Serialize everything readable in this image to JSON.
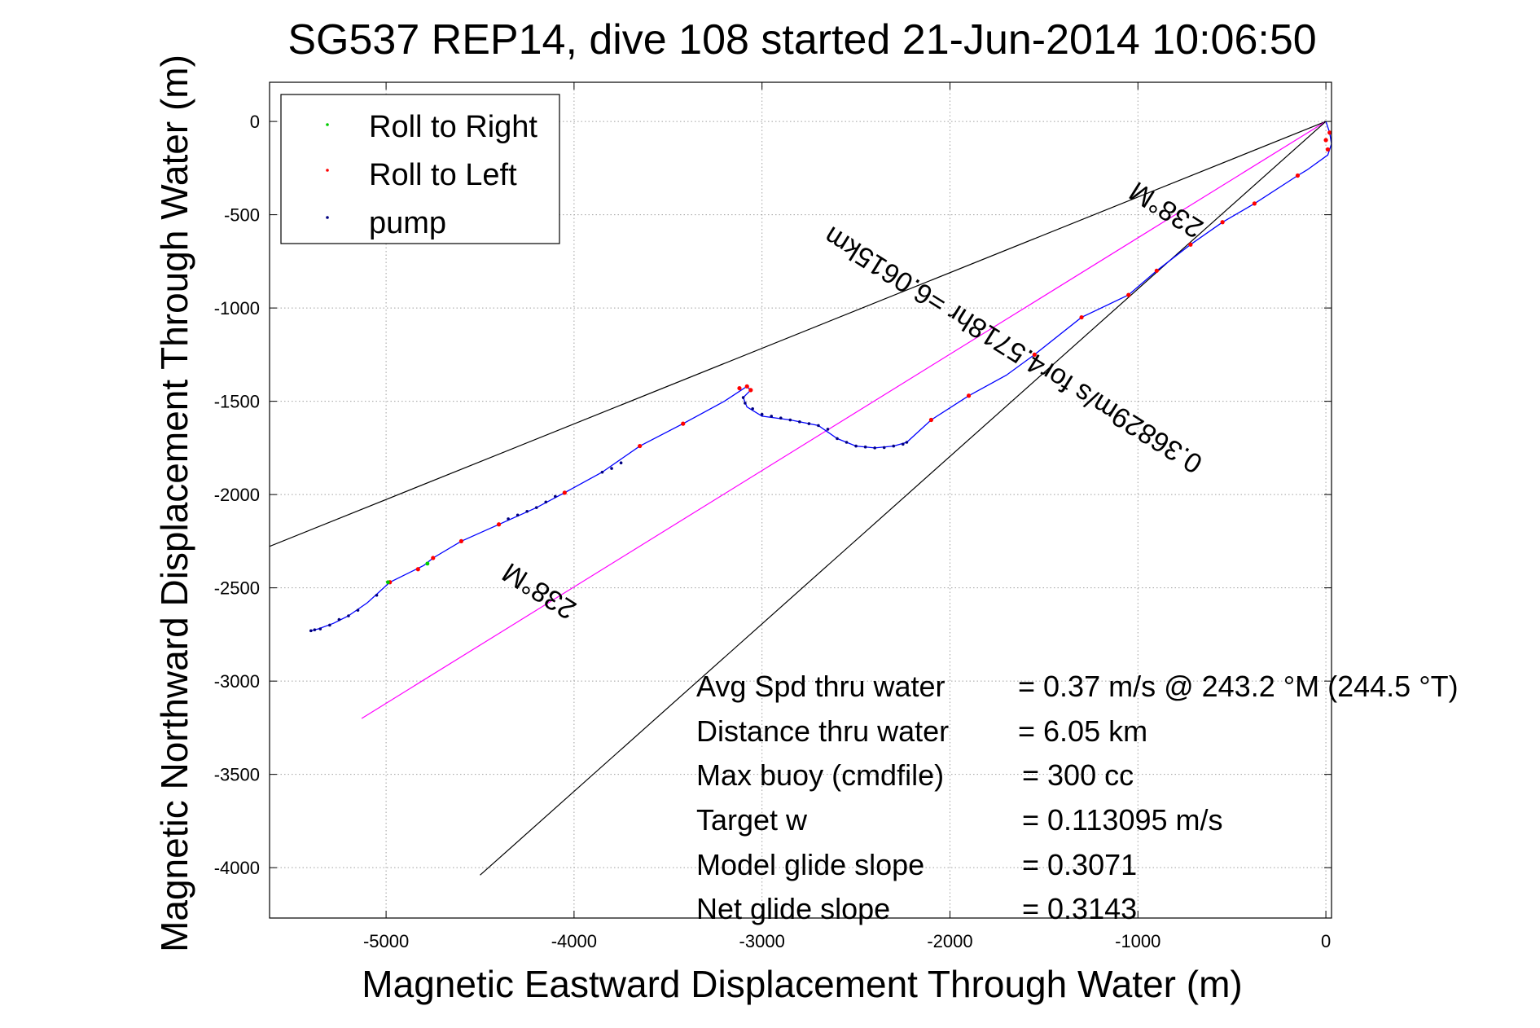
{
  "chart_data": {
    "type": "scatter",
    "title": "SG537 REP14, dive 108 started 21-Jun-2014 10:06:50",
    "xlabel": "Magnetic Eastward Displacement Through Water (m)",
    "ylabel": "Magnetic Northward Displacement Through Water (m)",
    "xlim": [
      -5620,
      30
    ],
    "ylim": [
      -4270,
      210
    ],
    "grid": "on",
    "x_ticks": [
      -5000,
      -4000,
      -3000,
      -2000,
      -1000,
      0
    ],
    "y_ticks": [
      0,
      -500,
      -1000,
      -1500,
      -2000,
      -2500,
      -3000,
      -3500,
      -4000
    ],
    "legend": {
      "placement": "top-left",
      "entries": [
        {
          "label": "Roll to Right",
          "color": "#00cc00"
        },
        {
          "label": "Roll to Left",
          "color": "#ff0000"
        },
        {
          "label": "pump",
          "color": "#000080"
        }
      ]
    },
    "track": {
      "color": "#0000ff",
      "points": [
        [
          0,
          0
        ],
        [
          20,
          -60
        ],
        [
          30,
          -120
        ],
        [
          10,
          -180
        ],
        [
          -100,
          -260
        ],
        [
          -150,
          -290
        ],
        [
          -380,
          -440
        ],
        [
          -550,
          -540
        ],
        [
          -720,
          -660
        ],
        [
          -900,
          -800
        ],
        [
          -1050,
          -930
        ],
        [
          -1300,
          -1050
        ],
        [
          -1550,
          -1250
        ],
        [
          -1700,
          -1360
        ],
        [
          -1900,
          -1470
        ],
        [
          -2100,
          -1600
        ],
        [
          -2230,
          -1720
        ],
        [
          -2300,
          -1740
        ],
        [
          -2400,
          -1750
        ],
        [
          -2500,
          -1740
        ],
        [
          -2600,
          -1700
        ],
        [
          -2700,
          -1630
        ],
        [
          -2850,
          -1600
        ],
        [
          -3000,
          -1580
        ],
        [
          -3080,
          -1530
        ],
        [
          -3100,
          -1480
        ],
        [
          -3060,
          -1440
        ],
        [
          -3080,
          -1420
        ],
        [
          -3200,
          -1500
        ],
        [
          -3420,
          -1620
        ],
        [
          -3650,
          -1740
        ],
        [
          -3850,
          -1880
        ],
        [
          -4050,
          -1990
        ],
        [
          -4200,
          -2070
        ],
        [
          -4400,
          -2160
        ],
        [
          -4600,
          -2250
        ],
        [
          -4750,
          -2340
        ],
        [
          -4800,
          -2380
        ],
        [
          -4980,
          -2470
        ],
        [
          -5100,
          -2580
        ],
        [
          -5200,
          -2650
        ],
        [
          -5280,
          -2690
        ],
        [
          -5360,
          -2720
        ],
        [
          -5400,
          -2730
        ]
      ]
    },
    "roll_left_points": [
      [
        -150,
        -290
      ],
      [
        -380,
        -440
      ],
      [
        -550,
        -540
      ],
      [
        -720,
        -660
      ],
      [
        -900,
        -800
      ],
      [
        -1050,
        -930
      ],
      [
        -1300,
        -1050
      ],
      [
        -1550,
        -1250
      ],
      [
        -1900,
        -1470
      ],
      [
        -2100,
        -1600
      ],
      [
        -3420,
        -1620
      ],
      [
        -3650,
        -1740
      ],
      [
        -4050,
        -1990
      ],
      [
        -4400,
        -2160
      ],
      [
        -4600,
        -2250
      ],
      [
        -4750,
        -2340
      ],
      [
        -4980,
        -2470
      ],
      [
        -4830,
        -2400
      ],
      [
        -3120,
        -1430
      ],
      [
        -3080,
        -1420
      ],
      [
        -3060,
        -1440
      ],
      [
        0,
        -100
      ],
      [
        10,
        -150
      ],
      [
        20,
        -60
      ]
    ],
    "roll_right_points": [
      [
        -4780,
        -2370
      ],
      [
        -4990,
        -2470
      ]
    ],
    "pump_points": [
      [
        -3100,
        -1480
      ],
      [
        -3090,
        -1510
      ],
      [
        -3050,
        -1540
      ],
      [
        -3000,
        -1570
      ],
      [
        -2950,
        -1580
      ],
      [
        -2900,
        -1590
      ],
      [
        -2850,
        -1600
      ],
      [
        -2800,
        -1610
      ],
      [
        -2750,
        -1620
      ],
      [
        -2700,
        -1630
      ],
      [
        -2650,
        -1650
      ],
      [
        -2600,
        -1700
      ],
      [
        -2550,
        -1720
      ],
      [
        -2500,
        -1740
      ],
      [
        -2450,
        -1745
      ],
      [
        -2400,
        -1750
      ],
      [
        -2350,
        -1748
      ],
      [
        -2300,
        -1740
      ],
      [
        -2250,
        -1730
      ],
      [
        -2230,
        -1720
      ],
      [
        -3850,
        -1880
      ],
      [
        -3800,
        -1860
      ],
      [
        -4200,
        -2070
      ],
      [
        -4150,
        -2040
      ],
      [
        -4100,
        -2010
      ],
      [
        -4250,
        -2090
      ],
      [
        -4300,
        -2110
      ],
      [
        -4350,
        -2130
      ],
      [
        -5150,
        -2620
      ],
      [
        -5200,
        -2650
      ],
      [
        -5250,
        -2670
      ],
      [
        -5300,
        -2700
      ],
      [
        -5350,
        -2720
      ],
      [
        -5380,
        -2725
      ],
      [
        -5400,
        -2730
      ],
      [
        -3750,
        -1830
      ],
      [
        -5050,
        -2540
      ]
    ],
    "reference_lines": [
      {
        "color": "#000000",
        "from": [
          0,
          0
        ],
        "to": [
          -5650,
          -2290
        ]
      },
      {
        "color": "#ff00ff",
        "from": [
          0,
          0
        ],
        "to": [
          -5130,
          -3200
        ]
      },
      {
        "color": "#000000",
        "from": [
          0,
          0
        ],
        "to": [
          -4500,
          -4040
        ]
      }
    ],
    "annotations": {
      "heading_upper": "238°M",
      "heading_lower": "238°M",
      "speed_line": "0.36829m/s for4.5718hr =6.0615km"
    },
    "stats": [
      {
        "label": "Avg Spd thru water",
        "value": "=  0.37 m/s @ 243.2 °M (244.5 °T)"
      },
      {
        "label": "Distance thru water",
        "value": "=  6.05 km"
      },
      {
        "label": "Max buoy (cmdfile)",
        "value": "= 300 cc"
      },
      {
        "label": "Target w",
        "value": "= 0.113095 m/s"
      },
      {
        "label": "Model glide slope",
        "value": "= 0.3071"
      },
      {
        "label": "Net glide slope",
        "value": "= 0.3143"
      }
    ]
  }
}
